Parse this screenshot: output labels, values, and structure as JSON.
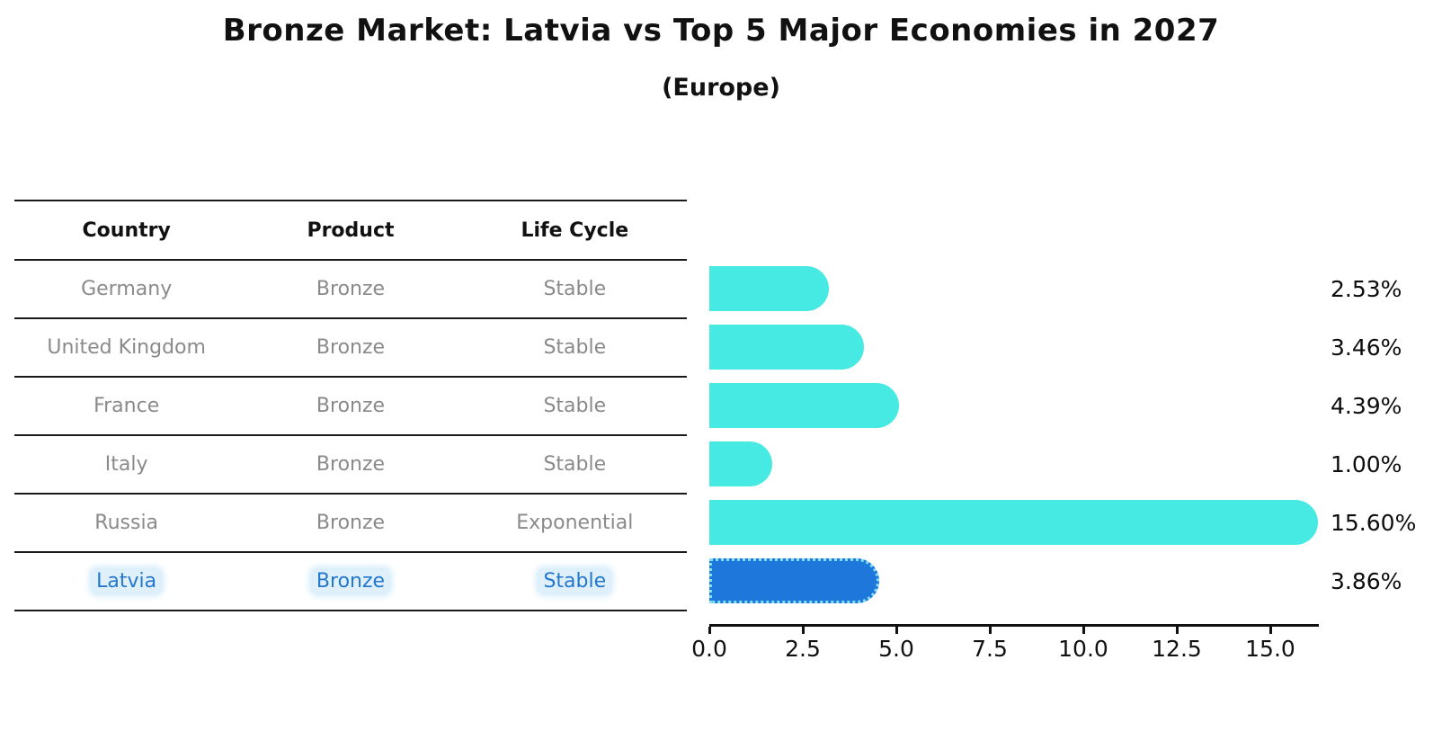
{
  "header": {
    "title": "Bronze Market: Latvia vs Top 5 Major Economies in 2027",
    "subtitle": "(Europe)"
  },
  "table": {
    "headers": [
      "Country",
      "Product",
      "Life Cycle"
    ],
    "rows": [
      {
        "country": "Germany",
        "product": "Bronze",
        "life_cycle": "Stable",
        "highlighted": false
      },
      {
        "country": "United Kingdom",
        "product": "Bronze",
        "life_cycle": "Stable",
        "highlighted": false
      },
      {
        "country": "France",
        "product": "Bronze",
        "life_cycle": "Stable",
        "highlighted": false
      },
      {
        "country": "Italy",
        "product": "Bronze",
        "life_cycle": "Stable",
        "highlighted": false
      },
      {
        "country": "Russia",
        "product": "Bronze",
        "life_cycle": "Exponential",
        "highlighted": false
      },
      {
        "country": "Latvia",
        "product": "Bronze",
        "life_cycle": "Stable",
        "highlighted": true
      }
    ]
  },
  "chart_data": {
    "type": "bar",
    "orientation": "horizontal",
    "title": "Bronze Market: Latvia vs Top 5 Major Economies in 2027 (Europe)",
    "categories": [
      "Germany",
      "United Kingdom",
      "France",
      "Italy",
      "Russia",
      "Latvia"
    ],
    "values": [
      2.53,
      3.46,
      4.39,
      1.0,
      15.6,
      3.86
    ],
    "value_labels": [
      "2.53%",
      "3.46%",
      "4.39%",
      "1.00%",
      "15.60%",
      "3.86%"
    ],
    "highlight_index": 5,
    "xlabel": "",
    "ylabel": "",
    "xlim": [
      0,
      16.3
    ],
    "x_ticks": [
      "0.0",
      "2.5",
      "5.0",
      "7.5",
      "10.0",
      "12.5",
      "15.0"
    ],
    "x_tick_values": [
      0,
      2.5,
      5,
      7.5,
      10,
      12.5,
      15
    ],
    "grid": false,
    "legend": false,
    "bar_color": "#47EAE3",
    "highlight_bar_color": "#1E78DC",
    "highlight_border_color": "#82DEF0",
    "highlight_text_color": "#2478cc",
    "row_text_color": "#8a8a8a"
  }
}
